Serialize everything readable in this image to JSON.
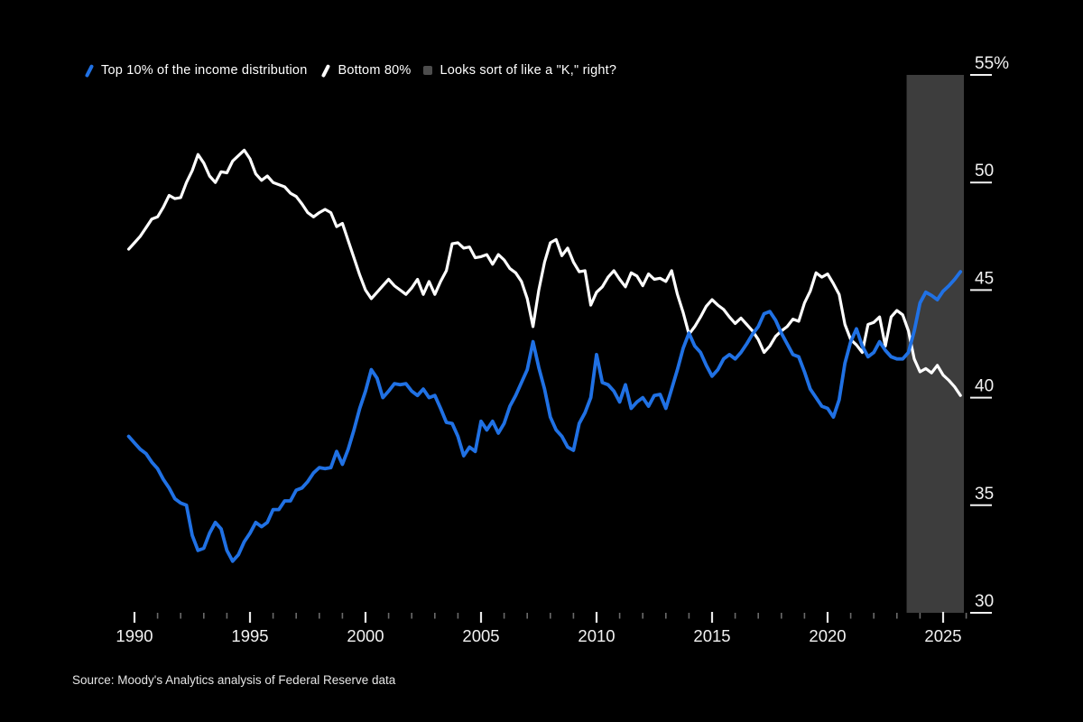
{
  "page": {
    "background": "#000000"
  },
  "legend": {
    "items": [
      {
        "label": "Top 10% of the income distribution",
        "swatch": "line",
        "color": "#2071e4"
      },
      {
        "label": "Bottom 80%",
        "swatch": "line",
        "color": "#ffffff"
      },
      {
        "label": "Looks sort of like a \"K,\" right?",
        "swatch": "square",
        "color": "#4d4d4d"
      }
    ]
  },
  "source": {
    "text": "Source: Moody's Analytics analysis of Federal Reserve data"
  },
  "chart_data": {
    "type": "line",
    "title": "",
    "xlabel": "",
    "ylabel": "",
    "x_start": 1989.75,
    "x_step": 0.25,
    "x_end": 2025.75,
    "x_axis": {
      "min": 1990,
      "max": 2026,
      "minor_tick_every_years": 1,
      "labeled_ticks": [
        {
          "year": 1990,
          "label": "1990"
        },
        {
          "year": 1995,
          "label": "1995"
        },
        {
          "year": 2000,
          "label": "2000"
        },
        {
          "year": 2005,
          "label": "2005"
        },
        {
          "year": 2010,
          "label": "2010"
        },
        {
          "year": 2015,
          "label": "2015"
        },
        {
          "year": 2020,
          "label": "2020"
        },
        {
          "year": 2025,
          "label": "2025"
        }
      ]
    },
    "y_axis": {
      "side": "right",
      "min": 30,
      "max": 55,
      "unit": "%",
      "ticks": [
        {
          "value": 55,
          "label": "55%"
        },
        {
          "value": 50,
          "label": "50"
        },
        {
          "value": 45,
          "label": "45"
        },
        {
          "value": 40,
          "label": "40"
        },
        {
          "value": 35,
          "label": "35"
        },
        {
          "value": 30,
          "label": "30"
        }
      ]
    },
    "band": {
      "label": "Looks sort of like a \"K,\" right?",
      "x_from": 2023.42,
      "x_to": 2025.9,
      "color": "#3d3d3d"
    },
    "grid": "off",
    "legend_position": "top-left",
    "series": [
      {
        "name": "Top 10% of the income distribution",
        "color": "#2071e4",
        "stroke_width": 3.8,
        "values": [
          38.2,
          37.9,
          37.6,
          37.4,
          37.0,
          36.7,
          36.2,
          35.8,
          35.3,
          35.1,
          35.0,
          33.6,
          32.9,
          33.0,
          33.7,
          34.2,
          33.9,
          32.9,
          32.4,
          32.7,
          33.3,
          33.7,
          34.2,
          34.0,
          34.2,
          34.8,
          34.8,
          35.2,
          35.2,
          35.7,
          35.8,
          36.1,
          36.5,
          36.75,
          36.7,
          36.75,
          37.5,
          36.9,
          37.6,
          38.5,
          39.5,
          40.3,
          41.3,
          40.9,
          40.0,
          40.3,
          40.65,
          40.6,
          40.65,
          40.3,
          40.1,
          40.4,
          40.0,
          40.1,
          39.5,
          38.85,
          38.8,
          38.2,
          37.3,
          37.7,
          37.5,
          38.9,
          38.5,
          38.9,
          38.35,
          38.8,
          39.6,
          40.1,
          40.7,
          41.3,
          42.6,
          41.4,
          40.4,
          39.1,
          38.5,
          38.2,
          37.7,
          37.55,
          38.8,
          39.3,
          40.0,
          42.0,
          40.7,
          40.6,
          40.3,
          39.8,
          40.6,
          39.5,
          39.8,
          40.0,
          39.6,
          40.1,
          40.15,
          39.5,
          40.4,
          41.3,
          42.3,
          43.0,
          42.4,
          42.1,
          41.5,
          41.0,
          41.3,
          41.8,
          42.0,
          41.8,
          42.1,
          42.5,
          42.95,
          43.3,
          43.9,
          44.0,
          43.6,
          43.0,
          42.5,
          42.0,
          41.9,
          41.2,
          40.4,
          40.0,
          39.6,
          39.5,
          39.1,
          39.9,
          41.6,
          42.6,
          43.2,
          42.4,
          41.9,
          42.1,
          42.6,
          42.2,
          41.9,
          41.8,
          41.8,
          42.1,
          43.1,
          44.4,
          44.9,
          44.75,
          44.55,
          44.95,
          45.2,
          45.5,
          45.85
        ]
      },
      {
        "name": "Bottom 80%",
        "color": "#ffffff",
        "stroke_width": 3.2,
        "values": [
          46.9,
          47.2,
          47.5,
          47.9,
          48.3,
          48.4,
          48.85,
          49.4,
          49.25,
          49.3,
          50.0,
          50.55,
          51.3,
          50.9,
          50.3,
          50.0,
          50.5,
          50.45,
          51.0,
          51.25,
          51.5,
          51.1,
          50.4,
          50.1,
          50.3,
          50.0,
          49.9,
          49.8,
          49.5,
          49.35,
          49.0,
          48.6,
          48.4,
          48.6,
          48.75,
          48.6,
          47.95,
          48.1,
          47.3,
          46.5,
          45.7,
          45.0,
          44.6,
          44.9,
          45.2,
          45.5,
          45.2,
          45.0,
          44.8,
          45.1,
          45.5,
          44.8,
          45.4,
          44.8,
          45.4,
          45.9,
          47.15,
          47.2,
          46.95,
          47.0,
          46.5,
          46.55,
          46.65,
          46.2,
          46.65,
          46.4,
          46.0,
          45.8,
          45.4,
          44.6,
          43.3,
          45.0,
          46.3,
          47.2,
          47.35,
          46.6,
          46.95,
          46.3,
          45.85,
          45.9,
          44.3,
          44.9,
          45.15,
          45.6,
          45.9,
          45.5,
          45.15,
          45.8,
          45.65,
          45.2,
          45.75,
          45.5,
          45.55,
          45.4,
          45.9,
          44.8,
          43.95,
          42.95,
          43.3,
          43.75,
          44.25,
          44.55,
          44.3,
          44.1,
          43.75,
          43.45,
          43.7,
          43.4,
          43.1,
          42.7,
          42.1,
          42.4,
          42.85,
          43.1,
          43.3,
          43.65,
          43.55,
          44.4,
          44.95,
          45.8,
          45.6,
          45.75,
          45.3,
          44.8,
          43.4,
          42.7,
          42.45,
          42.1,
          43.4,
          43.5,
          43.75,
          42.4,
          43.75,
          44.05,
          43.85,
          43.1,
          41.8,
          41.2,
          41.35,
          41.15,
          41.5,
          41.05,
          40.8,
          40.5,
          40.1
        ]
      }
    ]
  }
}
